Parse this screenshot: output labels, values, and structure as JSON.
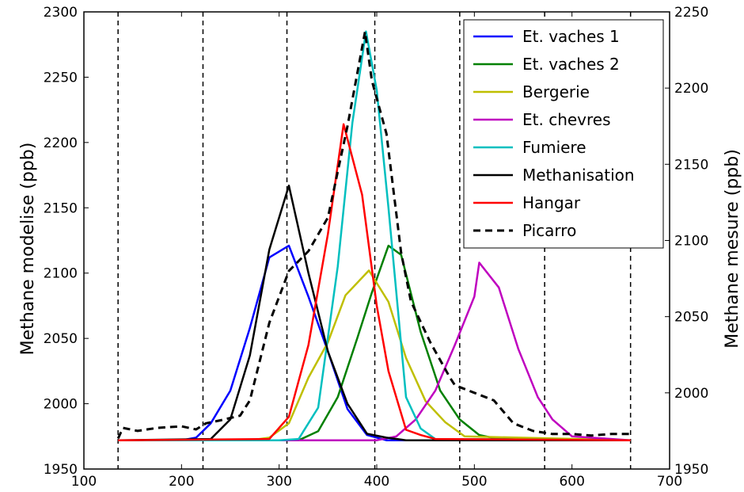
{
  "chart_data": {
    "type": "line",
    "xlabel": "",
    "ylabel": "Methane modelise (ppb)",
    "y2label": "Methane mesure (ppb)",
    "xlim": [
      100,
      700
    ],
    "ylim": [
      1950,
      2300
    ],
    "y2lim": [
      1950,
      2250
    ],
    "xticks": [
      "100",
      "200",
      "300",
      "400",
      "500",
      "600",
      "700"
    ],
    "yticks": [
      "1950",
      "2000",
      "2050",
      "2100",
      "2150",
      "2200",
      "2250",
      "2300"
    ],
    "y2ticks": [
      "1950",
      "2000",
      "2050",
      "2100",
      "2150",
      "2200",
      "2250"
    ],
    "vlines": [
      135,
      222,
      308,
      398,
      485,
      572,
      660
    ],
    "grid": false,
    "legend_position": "top-right",
    "series": [
      {
        "name": "Et. vaches 1",
        "color": "#0000ff",
        "style": "solid",
        "axis": "left",
        "x": [
          135,
          160,
          180,
          200,
          215,
          230,
          250,
          270,
          290,
          310,
          330,
          350,
          370,
          390,
          410,
          430,
          450,
          660
        ],
        "y": [
          1972,
          1972,
          1972,
          1972,
          1974,
          1985,
          2010,
          2058,
          2112,
          2121,
          2082,
          2040,
          1996,
          1976,
          1972,
          1972,
          1972,
          1972
        ]
      },
      {
        "name": "Et. vaches 2",
        "color": "#008000",
        "style": "solid",
        "axis": "left",
        "x": [
          135,
          320,
          340,
          360,
          380,
          395,
          412,
          425,
          445,
          465,
          485,
          505,
          525,
          660
        ],
        "y": [
          1972,
          1972,
          1979,
          2005,
          2050,
          2085,
          2121,
          2114,
          2055,
          2010,
          1988,
          1976,
          1973,
          1972
        ]
      },
      {
        "name": "Bergerie",
        "color": "#bfbf00",
        "style": "solid",
        "axis": "left",
        "x": [
          135,
          270,
          290,
          310,
          330,
          350,
          368,
          392,
          412,
          430,
          450,
          470,
          490,
          660
        ],
        "y": [
          1972,
          1972,
          1974,
          1985,
          2020,
          2047,
          2083,
          2102,
          2078,
          2035,
          2002,
          1986,
          1975,
          1972
        ]
      },
      {
        "name": "Et. chevres",
        "color": "#bf00bf",
        "style": "solid",
        "axis": "left",
        "x": [
          135,
          400,
          420,
          440,
          460,
          480,
          500,
          505,
          525,
          545,
          565,
          580,
          600,
          660
        ],
        "y": [
          1972,
          1972,
          1975,
          1988,
          2010,
          2045,
          2082,
          2108,
          2089,
          2042,
          2005,
          1988,
          1975,
          1972
        ]
      },
      {
        "name": "Fumiere",
        "color": "#00bfbf",
        "style": "solid",
        "axis": "left",
        "x": [
          135,
          300,
          320,
          340,
          360,
          375,
          389,
          400,
          412,
          430,
          445,
          460,
          660
        ],
        "y": [
          1972,
          1972,
          1973,
          1997,
          2105,
          2215,
          2285,
          2240,
          2150,
          2005,
          1981,
          1973,
          1972
        ]
      },
      {
        "name": "Methanisation",
        "color": "#000000",
        "style": "solid",
        "axis": "left",
        "x": [
          135,
          230,
          250,
          270,
          290,
          310,
          330,
          350,
          370,
          390,
          410,
          430,
          450,
          660
        ],
        "y": [
          1972,
          1973,
          1988,
          2037,
          2118,
          2167,
          2100,
          2040,
          2000,
          1977,
          1974,
          1972,
          1972,
          1972
        ]
      },
      {
        "name": "Hangar",
        "color": "#ff0000",
        "style": "solid",
        "axis": "left",
        "x": [
          135,
          290,
          310,
          330,
          350,
          366,
          385,
          400,
          412,
          430,
          445,
          460,
          660
        ],
        "y": [
          1972,
          1973,
          1990,
          2045,
          2130,
          2214,
          2160,
          2075,
          2025,
          1980,
          1976,
          1973,
          1972
        ]
      },
      {
        "name": "Picarro",
        "color": "#000000",
        "style": "dashed",
        "axis": "right",
        "x": [
          135,
          140,
          155,
          175,
          200,
          215,
          225,
          240,
          260,
          270,
          290,
          310,
          330,
          350,
          370,
          388,
          395,
          410,
          425,
          435,
          455,
          475,
          480,
          500,
          520,
          540,
          560,
          580,
          600,
          620,
          640,
          660
        ],
        "y": [
          1970,
          1977,
          1975,
          1977,
          1978,
          1976,
          1980,
          1982,
          1985,
          1995,
          2046,
          2080,
          2093,
          2115,
          2175,
          2237,
          2205,
          2170,
          2092,
          2060,
          2033,
          2010,
          2005,
          2000,
          1995,
          1980,
          1975,
          1973,
          1973,
          1972,
          1973,
          1973
        ]
      }
    ]
  }
}
